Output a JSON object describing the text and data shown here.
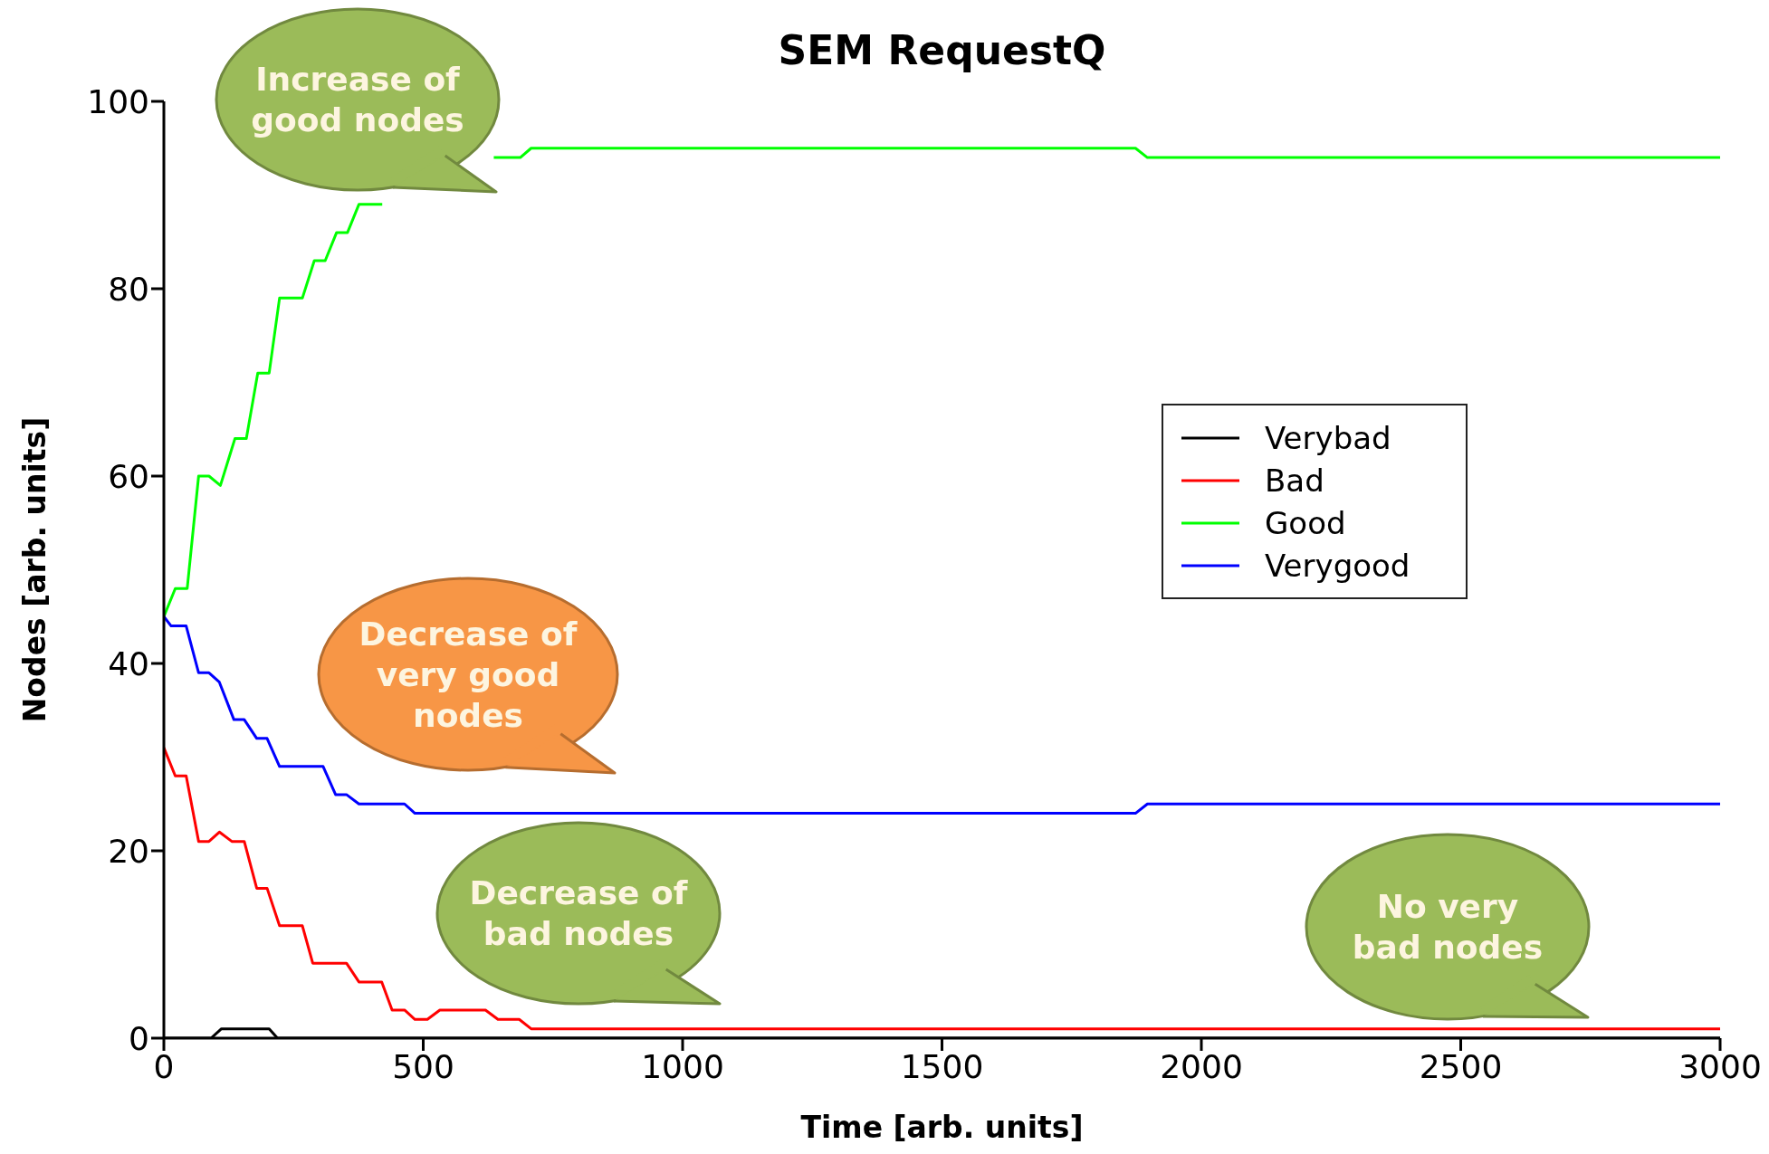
{
  "chart_data": {
    "type": "line",
    "title": "SEM RequestQ",
    "xlabel": "Time [arb. units]",
    "ylabel": "Nodes [arb. units]",
    "xlim": [
      0,
      3000
    ],
    "xticks": [
      0,
      500,
      1000,
      1500,
      2000,
      2500,
      3000
    ],
    "ylim": [
      0,
      100
    ],
    "yticks": [
      0,
      20,
      40,
      60,
      80,
      100
    ],
    "legend": "right",
    "marker": "none",
    "line_style": "solid",
    "series": [
      {
        "name": "Verybad",
        "color": "#000000",
        "x": [
          0,
          91,
          111,
          203,
          219,
          3000
        ],
        "values": [
          0,
          0,
          1,
          1,
          0,
          0
        ]
      },
      {
        "name": "Bad",
        "color": "#ff0000",
        "x": [
          0,
          22,
          43,
          67,
          87,
          107,
          131,
          155,
          179,
          199,
          223,
          267,
          287,
          352,
          376,
          420,
          440,
          464,
          484,
          508,
          532,
          620,
          644,
          685,
          708,
          3000
        ],
        "values": [
          31,
          28,
          28,
          21,
          21,
          22,
          21,
          21,
          16,
          16,
          12,
          12,
          8,
          8,
          6,
          6,
          3,
          3,
          2,
          2,
          3,
          3,
          2,
          2,
          1,
          1
        ]
      },
      {
        "name": "Good",
        "color": "#00ff00",
        "x": [
          0,
          22,
          45,
          67,
          87,
          109,
          137,
          159,
          181,
          203,
          223,
          267,
          290,
          311,
          333,
          354,
          376,
          421,
          530,
          636,
          687,
          708,
          1873,
          1896,
          3000
        ],
        "values": [
          45,
          48,
          48,
          60,
          60,
          59,
          64,
          64,
          71,
          71,
          79,
          79,
          83,
          83,
          86,
          86,
          89,
          89,
          null,
          94,
          94,
          95,
          95,
          94,
          94
        ]
      },
      {
        "name": "Verygood",
        "color": "#0000ff",
        "x": [
          0,
          14,
          43,
          67,
          87,
          107,
          135,
          155,
          179,
          199,
          223,
          307,
          331,
          352,
          376,
          464,
          484,
          1873,
          1896,
          3000
        ],
        "values": [
          45,
          44,
          44,
          39,
          39,
          38,
          34,
          34,
          32,
          32,
          29,
          29,
          26,
          26,
          25,
          25,
          24,
          24,
          25,
          25
        ]
      }
    ],
    "annotations": [
      "Increase of\ngood nodes",
      "Decrease of\nvery good\nnodes",
      "Decrease of\nbad nodes",
      "No very\nbad nodes"
    ]
  }
}
